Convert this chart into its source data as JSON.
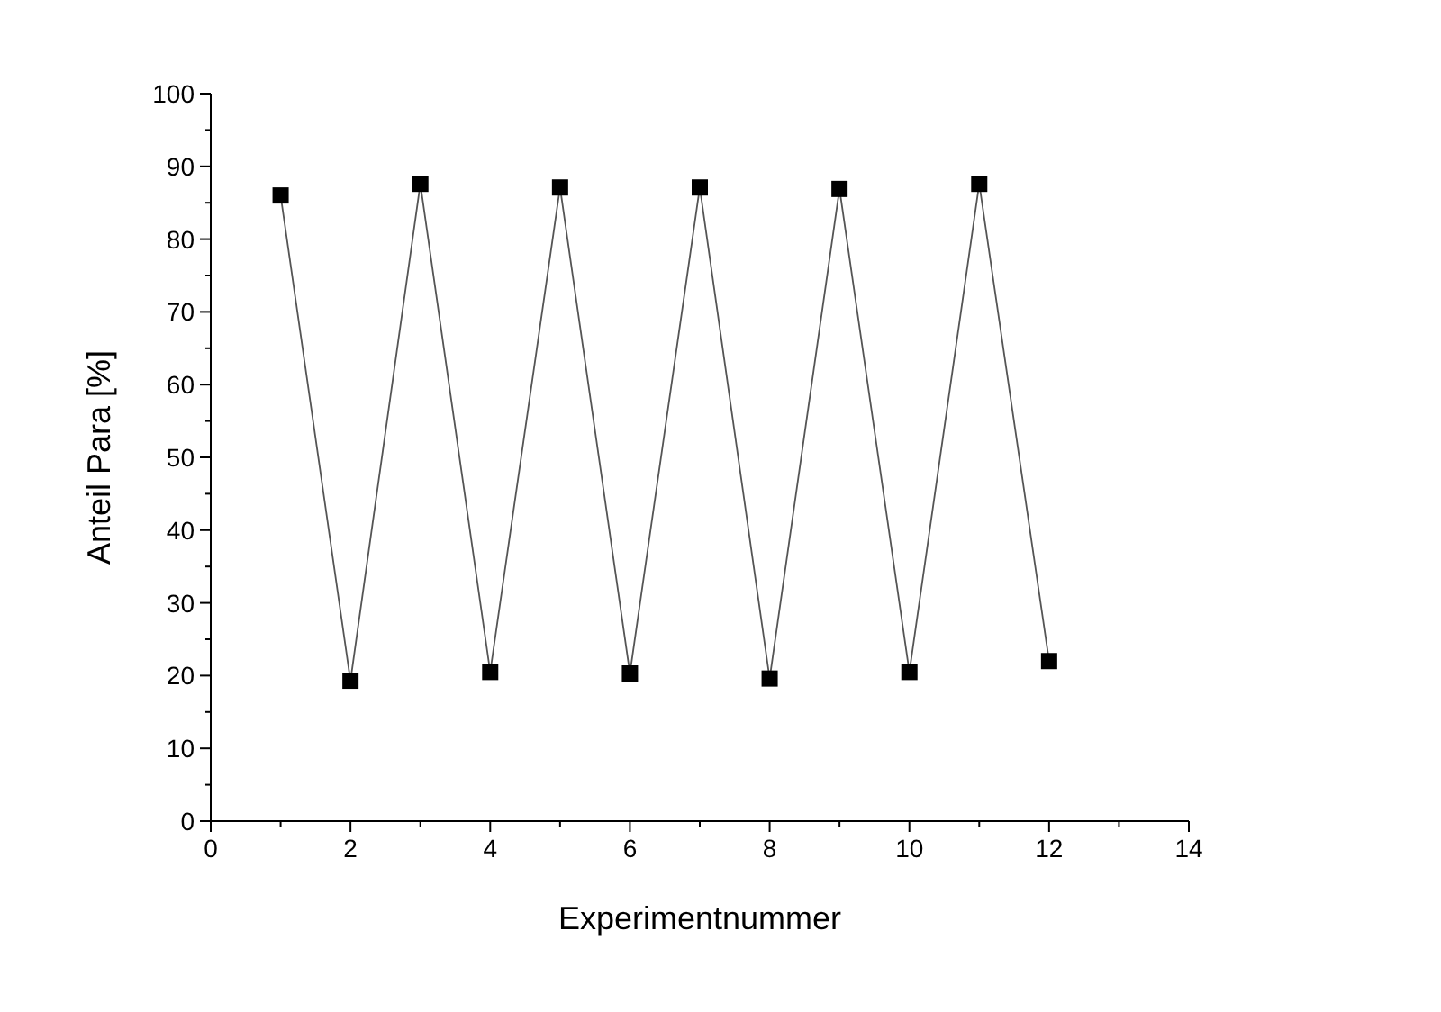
{
  "chart_data": {
    "type": "line",
    "xlabel": "Experimentnummer",
    "ylabel": "Anteil Para [%]",
    "x": [
      1,
      2,
      3,
      4,
      5,
      6,
      7,
      8,
      9,
      10,
      11,
      12
    ],
    "series": [
      {
        "color": "#000000",
        "values": [
          86,
          19.3,
          87.6,
          20.5,
          87.1,
          20.3,
          87.1,
          19.6,
          86.9,
          20.5,
          87.6,
          22
        ]
      }
    ],
    "xlim": [
      0,
      14
    ],
    "xticks": [
      0,
      {
        "value": 1,
        "label": null
      },
      2,
      {
        "value": 3,
        "label": null
      },
      4,
      {
        "value": 5,
        "label": null
      },
      6,
      {
        "value": 7,
        "label": null
      },
      8,
      {
        "value": 9,
        "label": null
      },
      10,
      {
        "value": 11,
        "label": null
      },
      12,
      {
        "value": 13,
        "label": null
      },
      14
    ],
    "ylim": [
      0,
      100
    ],
    "yticks": [
      0,
      {
        "value": 5,
        "label": null
      },
      10,
      {
        "value": 15,
        "label": null
      },
      20,
      {
        "value": 25,
        "label": null
      },
      30,
      {
        "value": 35,
        "label": null
      },
      40,
      {
        "value": 45,
        "label": null
      },
      50,
      {
        "value": 55,
        "label": null
      },
      60,
      {
        "value": 65,
        "label": null
      },
      70,
      {
        "value": 75,
        "label": null
      },
      80,
      {
        "value": 85,
        "label": null
      },
      90,
      {
        "value": 95,
        "label": null
      },
      100
    ],
    "marker": "square",
    "line_style": "solid",
    "grid": false
  }
}
